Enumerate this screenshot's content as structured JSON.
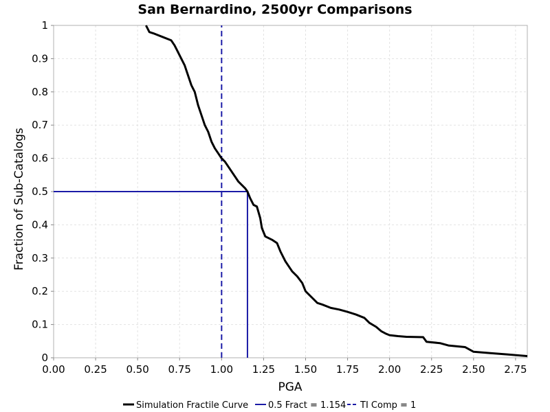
{
  "chart_data": {
    "type": "line",
    "title": "San Bernardino, 2500yr Comparisons",
    "xlabel": "PGA",
    "ylabel": "Fraction of Sub-Catalogs",
    "xlim": [
      0,
      2.82
    ],
    "ylim": [
      0,
      1
    ],
    "xticks": [
      "0.00",
      "0.25",
      "0.50",
      "0.75",
      "1.00",
      "1.25",
      "1.50",
      "1.75",
      "2.00",
      "2.25",
      "2.50",
      "2.75"
    ],
    "yticks": [
      "0",
      "0.1",
      "0.2",
      "0.3",
      "0.4",
      "0.5",
      "0.6",
      "0.7",
      "0.8",
      "0.9",
      "1"
    ],
    "grid": true,
    "legend": "bottom",
    "series": [
      {
        "name": "Simulation Fractile Curve",
        "color": "#000000",
        "style": "solid",
        "x": [
          0.55,
          0.57,
          0.6,
          0.65,
          0.7,
          0.72,
          0.74,
          0.76,
          0.78,
          0.8,
          0.82,
          0.84,
          0.86,
          0.88,
          0.9,
          0.92,
          0.94,
          0.96,
          0.98,
          1.0,
          1.02,
          1.04,
          1.06,
          1.08,
          1.1,
          1.12,
          1.14,
          1.154,
          1.17,
          1.19,
          1.21,
          1.23,
          1.24,
          1.26,
          1.3,
          1.33,
          1.35,
          1.38,
          1.42,
          1.45,
          1.48,
          1.5,
          1.55,
          1.57,
          1.6,
          1.65,
          1.7,
          1.75,
          1.8,
          1.85,
          1.88,
          1.92,
          1.95,
          1.98,
          2.0,
          2.05,
          2.1,
          2.2,
          2.22,
          2.3,
          2.35,
          2.45,
          2.5,
          2.6,
          2.7,
          2.82
        ],
        "y": [
          1.0,
          0.98,
          0.975,
          0.965,
          0.955,
          0.94,
          0.92,
          0.9,
          0.88,
          0.85,
          0.82,
          0.8,
          0.76,
          0.73,
          0.7,
          0.68,
          0.65,
          0.63,
          0.615,
          0.6,
          0.59,
          0.575,
          0.56,
          0.545,
          0.53,
          0.52,
          0.51,
          0.5,
          0.48,
          0.46,
          0.455,
          0.42,
          0.39,
          0.365,
          0.355,
          0.345,
          0.32,
          0.29,
          0.26,
          0.245,
          0.225,
          0.2,
          0.175,
          0.165,
          0.16,
          0.15,
          0.145,
          0.138,
          0.13,
          0.12,
          0.105,
          0.093,
          0.08,
          0.072,
          0.068,
          0.065,
          0.063,
          0.062,
          0.048,
          0.044,
          0.037,
          0.032,
          0.018,
          0.014,
          0.01,
          0.005
        ]
      },
      {
        "name": "0.5 Fract = 1.154",
        "color": "#1a1aa6",
        "style": "solid",
        "x": [
          0,
          1.154,
          1.154
        ],
        "y": [
          0.5,
          0.5,
          0
        ]
      },
      {
        "name": "TI Comp = 1",
        "color": "#1a1aa6",
        "style": "dashed",
        "x": [
          1.0,
          1.0
        ],
        "y": [
          0,
          1
        ]
      }
    ]
  }
}
